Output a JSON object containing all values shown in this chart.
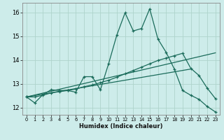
{
  "xlabel": "Humidex (Indice chaleur)",
  "background_color": "#cdecea",
  "grid_color": "#aed4cc",
  "line_color": "#1a6b5a",
  "xlim": [
    -0.5,
    23.5
  ],
  "ylim": [
    11.7,
    16.4
  ],
  "xticks": [
    0,
    1,
    2,
    3,
    4,
    5,
    6,
    7,
    8,
    9,
    10,
    11,
    12,
    13,
    14,
    15,
    16,
    17,
    18,
    19,
    20,
    21,
    22,
    23
  ],
  "yticks": [
    12,
    13,
    14,
    15,
    16
  ],
  "line1_x": [
    0,
    1,
    2,
    3,
    4,
    5,
    6,
    7,
    8,
    9,
    10,
    11,
    12,
    13,
    14,
    15,
    16,
    17,
    18,
    19,
    20,
    21,
    22,
    23
  ],
  "line1_y": [
    12.45,
    12.2,
    12.55,
    12.75,
    12.72,
    12.72,
    12.65,
    13.3,
    13.3,
    12.75,
    13.85,
    15.05,
    15.98,
    15.22,
    15.32,
    16.15,
    14.88,
    14.32,
    13.62,
    12.72,
    12.52,
    12.35,
    12.05,
    11.82
  ],
  "line2_x": [
    0,
    1,
    2,
    3,
    4,
    5,
    6,
    7,
    8,
    9,
    10,
    11,
    12,
    13,
    14,
    15,
    16,
    17,
    18,
    19,
    20,
    21,
    22,
    23
  ],
  "line2_y": [
    12.45,
    12.45,
    12.52,
    12.62,
    12.67,
    12.72,
    12.78,
    12.88,
    12.95,
    13.05,
    13.15,
    13.28,
    13.42,
    13.56,
    13.7,
    13.84,
    13.98,
    14.08,
    14.18,
    14.28,
    13.65,
    13.35,
    12.82,
    12.38
  ],
  "line3_x": [
    0,
    20
  ],
  "line3_y": [
    12.45,
    13.62
  ],
  "line4_x": [
    0,
    23
  ],
  "line4_y": [
    12.45,
    14.3
  ]
}
